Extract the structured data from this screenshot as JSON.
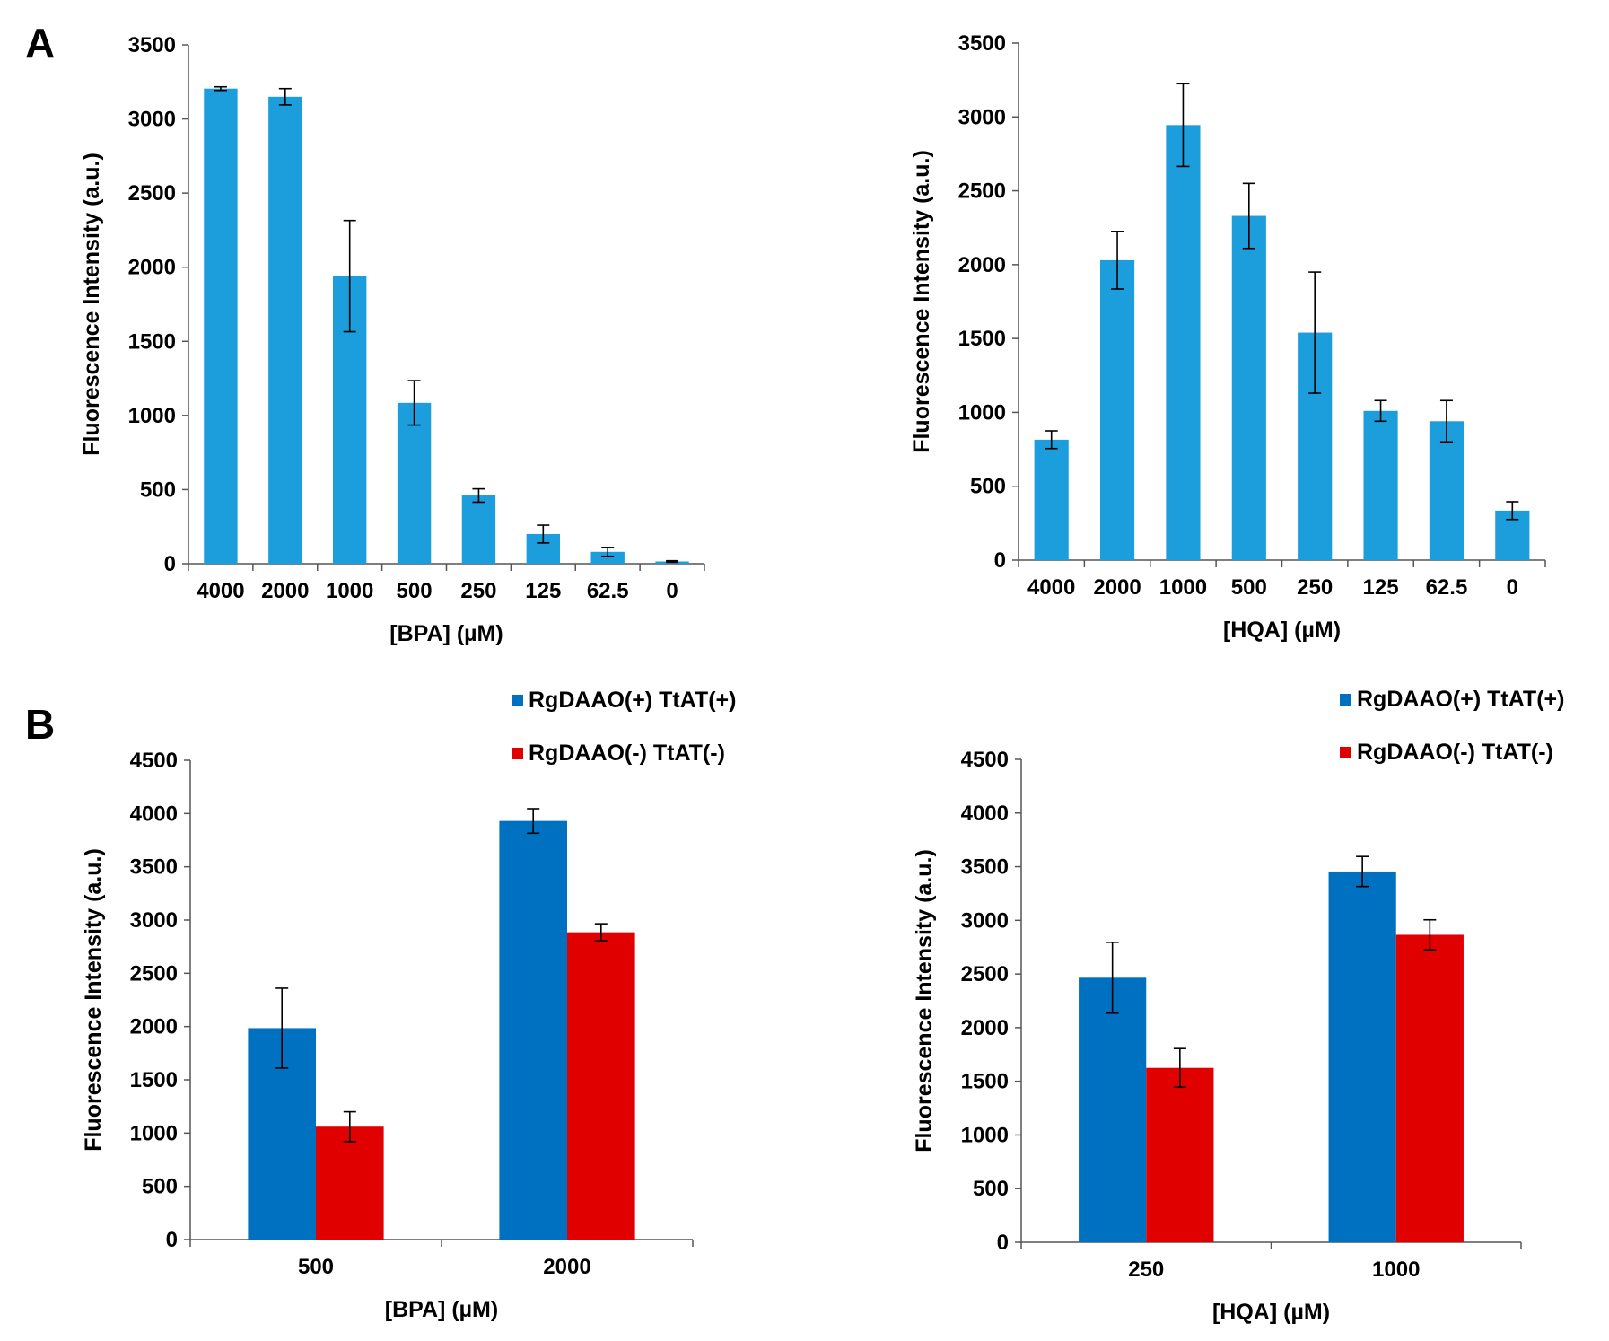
{
  "panels": [
    {
      "label": "A"
    },
    {
      "label": "B"
    }
  ],
  "chart_data": [
    {
      "type": "bar",
      "panel": "A",
      "title": "",
      "xlabel": "[BPA] (µM)",
      "ylabel": "Fluorescence Intensity (a.u.)",
      "ylim": [
        0,
        3500
      ],
      "yticks": [
        0,
        500,
        1000,
        1500,
        2000,
        2500,
        3000,
        3500
      ],
      "categories": [
        "4000",
        "2000",
        "1000",
        "500",
        "250",
        "125",
        "62.5",
        "0"
      ],
      "series": [
        {
          "name": "",
          "color": "#1c9ddc",
          "values": [
            3205,
            3150,
            1940,
            1085,
            460,
            200,
            80,
            15
          ],
          "errors": [
            12,
            55,
            375,
            150,
            45,
            60,
            30,
            5
          ]
        }
      ],
      "legend": null
    },
    {
      "type": "bar",
      "panel": "A",
      "title": "",
      "xlabel": "[HQA] (µM)",
      "ylabel": "Fluorescence Intensity (a.u.)",
      "ylim": [
        0,
        3500
      ],
      "yticks": [
        0,
        500,
        1000,
        1500,
        2000,
        2500,
        3000,
        3500
      ],
      "categories": [
        "4000",
        "2000",
        "1000",
        "500",
        "250",
        "125",
        "62.5",
        "0"
      ],
      "series": [
        {
          "name": "",
          "color": "#1c9ddc",
          "values": [
            815,
            2030,
            2945,
            2330,
            1540,
            1010,
            940,
            335
          ],
          "errors": [
            60,
            195,
            280,
            220,
            410,
            70,
            140,
            60
          ]
        }
      ],
      "legend": null
    },
    {
      "type": "bar",
      "panel": "B",
      "title": "",
      "xlabel": "[BPA] (µM)",
      "ylabel": "Fluorescence Intensity (a.u.)",
      "ylim": [
        0,
        4500
      ],
      "yticks": [
        0,
        500,
        1000,
        1500,
        2000,
        2500,
        3000,
        3500,
        4000,
        4500
      ],
      "categories": [
        "500",
        "2000"
      ],
      "series": [
        {
          "name": "RgDAAO(+) TtAT(+)",
          "color": "#0070c0",
          "values": [
            1985,
            3930
          ],
          "errors": [
            375,
            115
          ]
        },
        {
          "name": "RgDAAO(-) TtAT(-)",
          "color": "#e00000",
          "values": [
            1060,
            2885
          ],
          "errors": [
            140,
            80
          ]
        }
      ],
      "legend": "top-right"
    },
    {
      "type": "bar",
      "panel": "B",
      "title": "",
      "xlabel": "[HQA] (µM)",
      "ylabel": "Fluorescence Intensity (a.u.)",
      "ylim": [
        0,
        4500
      ],
      "yticks": [
        0,
        500,
        1000,
        1500,
        2000,
        2500,
        3000,
        3500,
        4000,
        4500
      ],
      "categories": [
        "250",
        "1000"
      ],
      "series": [
        {
          "name": "RgDAAO(+) TtAT(+)",
          "color": "#0070c0",
          "values": [
            2465,
            3455
          ],
          "errors": [
            330,
            140
          ]
        },
        {
          "name": "RgDAAO(-) TtAT(-)",
          "color": "#e00000",
          "values": [
            1625,
            2865
          ],
          "errors": [
            180,
            140
          ]
        }
      ],
      "legend": "top-right"
    }
  ]
}
